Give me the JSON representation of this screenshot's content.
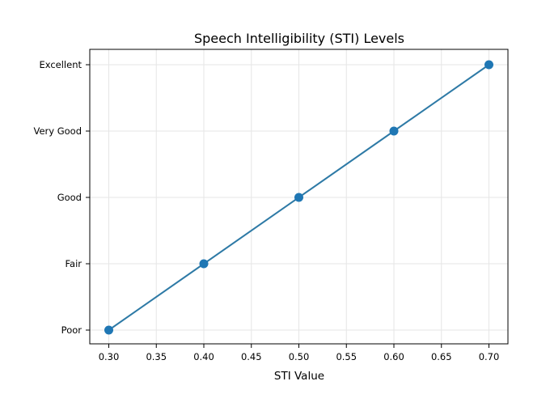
{
  "chart_data": {
    "type": "line",
    "title": "Speech Intelligibility (STI) Levels",
    "xlabel": "STI Value",
    "ylabel": "",
    "x": [
      0.3,
      0.4,
      0.5,
      0.6,
      0.7
    ],
    "categories": [
      "Poor",
      "Fair",
      "Good",
      "Very Good",
      "Excellent"
    ],
    "series": [
      {
        "x": [
          0.3,
          0.4,
          0.5,
          0.6,
          0.7
        ],
        "values": [
          "Poor",
          "Fair",
          "Good",
          "Very Good",
          "Excellent"
        ]
      }
    ],
    "xlim": [
      0.28,
      0.72
    ],
    "xticks": [
      0.3,
      0.35,
      0.4,
      0.45,
      0.5,
      0.55,
      0.6,
      0.65,
      0.7
    ],
    "xtick_labels": [
      "0.30",
      "0.35",
      "0.40",
      "0.45",
      "0.50",
      "0.55",
      "0.60",
      "0.65",
      "0.70"
    ],
    "ytick_labels": [
      "Poor",
      "Fair",
      "Good",
      "Very Good",
      "Excellent"
    ],
    "grid": true,
    "line_color": "#2e7aa6",
    "marker_color": "#1f77b4",
    "marker": "circle"
  }
}
